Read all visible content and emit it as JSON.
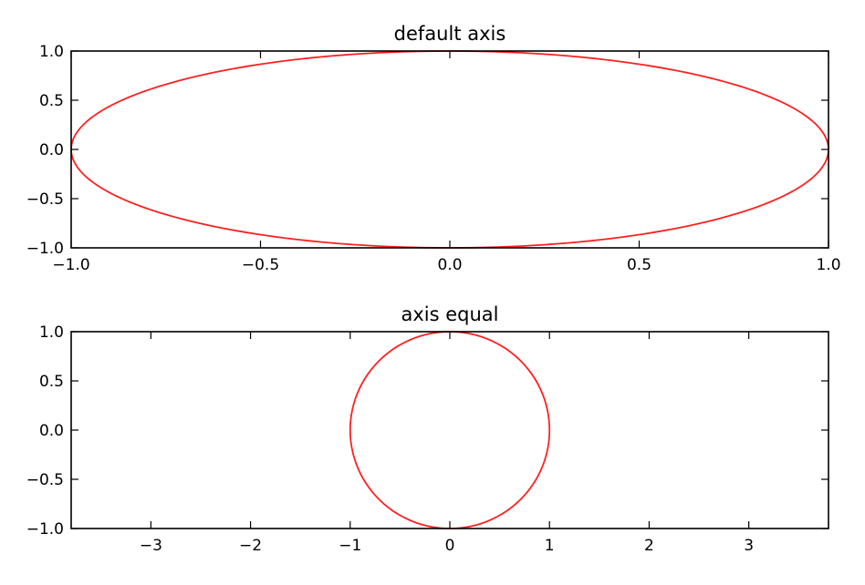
{
  "chart_data": [
    {
      "type": "line",
      "title": "default axis",
      "xlim": [
        -1.0,
        1.0
      ],
      "ylim": [
        -1.0,
        1.0
      ],
      "x_ticks": [
        -1.0,
        -0.5,
        0.0,
        0.5,
        1.0
      ],
      "x_tick_labels": [
        "−1.0",
        "−0.5",
        "0.0",
        "0.5",
        "1.0"
      ],
      "y_ticks": [
        1.0,
        0.5,
        0.0,
        -0.5,
        -1.0
      ],
      "y_tick_labels": [
        "1.0",
        "0.5",
        "0.0",
        "−0.5",
        "−1.0"
      ],
      "grid": false,
      "series": [
        {
          "shape": "unit circle",
          "cx": 0,
          "cy": 0,
          "r": 1,
          "color": "#ff2020"
        }
      ]
    },
    {
      "type": "line",
      "title": "axis equal",
      "xlim": [
        -3.8,
        3.8
      ],
      "ylim": [
        -1.0,
        1.0
      ],
      "x_ticks": [
        -3,
        -2,
        -1,
        0,
        1,
        2,
        3
      ],
      "x_tick_labels": [
        "−3",
        "−2",
        "−1",
        "0",
        "1",
        "2",
        "3"
      ],
      "y_ticks": [
        1.0,
        0.5,
        0.0,
        -0.5,
        -1.0
      ],
      "y_tick_labels": [
        "1.0",
        "0.5",
        "0.0",
        "−0.5",
        "−1.0"
      ],
      "grid": false,
      "series": [
        {
          "shape": "unit circle",
          "cx": 0,
          "cy": 0,
          "r": 1,
          "color": "#ff2020"
        }
      ]
    }
  ]
}
